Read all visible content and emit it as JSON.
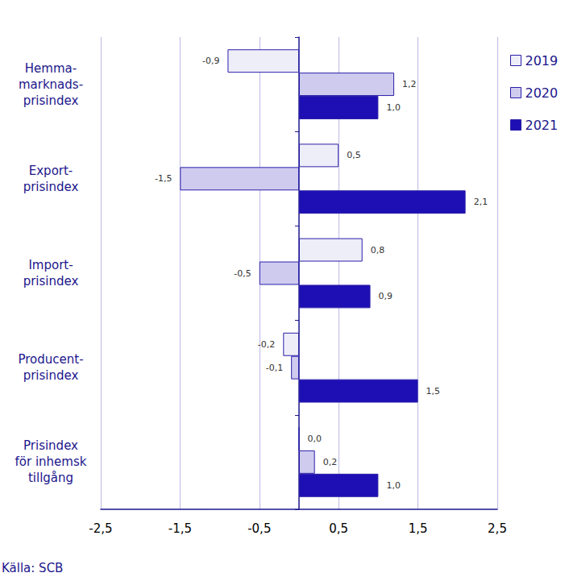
{
  "chart_data": {
    "type": "bar",
    "orientation": "horizontal",
    "source": "Källa: SCB",
    "categories": [
      "Hemma-\nmarknads-\nprisindex",
      "Export-\nprisindex",
      "Import-\nprisindex",
      "Producent-\nprisindex",
      "Prisindex\nför inhemsk\ntillgång"
    ],
    "series": [
      {
        "name": "2019",
        "color": "#eeeef9",
        "values": [
          -0.9,
          0.5,
          0.8,
          -0.2,
          0.0
        ],
        "value_labels": [
          "-0,9",
          "0,5",
          "0,8",
          "-0,2",
          "0,0"
        ]
      },
      {
        "name": "2020",
        "color": "#cfcbef",
        "values": [
          1.2,
          -1.5,
          -0.5,
          -0.1,
          0.2
        ],
        "value_labels": [
          "1,2",
          "-1,5",
          "-0,5",
          "-0,1",
          "0,2"
        ]
      },
      {
        "name": "2021",
        "color": "#1e0fb4",
        "values": [
          1.0,
          2.1,
          0.9,
          1.5,
          1.0
        ],
        "value_labels": [
          "1,0",
          "2,1",
          "0,9",
          "1,5",
          "1,0"
        ]
      }
    ],
    "xlim": [
      -2.5,
      2.5
    ],
    "xticks": [
      {
        "value": -2.5,
        "label": "-2,5"
      },
      {
        "value": -1.5,
        "label": "-1,5"
      },
      {
        "value": -0.5,
        "label": "-0,5"
      },
      {
        "value": 0.5,
        "label": "0,5"
      },
      {
        "value": 1.5,
        "label": "1,5"
      },
      {
        "value": 2.5,
        "label": "2,5"
      }
    ],
    "grid": true,
    "legend": "right",
    "data_labels": true
  }
}
